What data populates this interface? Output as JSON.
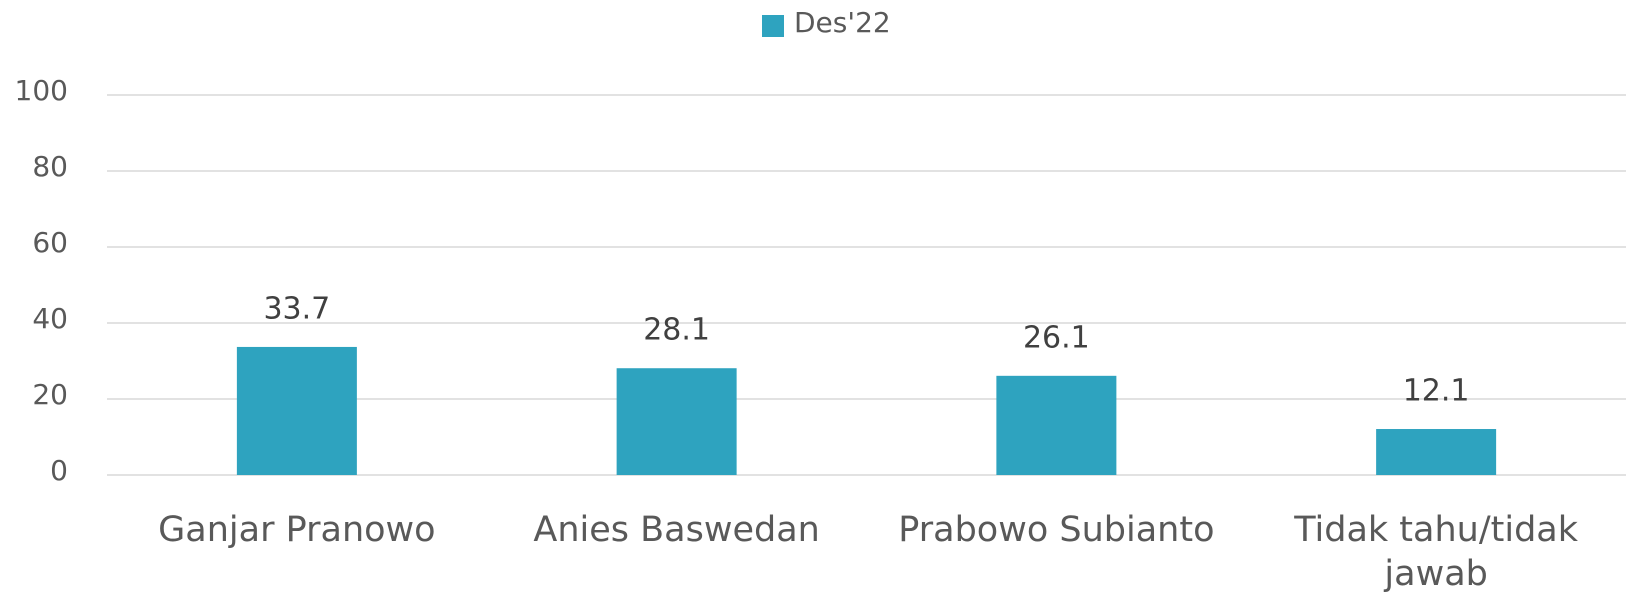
{
  "chart_data": {
    "type": "bar",
    "categories": [
      "Ganjar Pranowo",
      "Anies Baswedan",
      "Prabowo Subianto",
      "Tidak tahu/tidak jawab"
    ],
    "series": [
      {
        "name": "Des'22",
        "color": "#2ea3bf",
        "values": [
          33.7,
          28.1,
          26.1,
          12.1
        ]
      }
    ],
    "ylim": [
      0,
      100
    ],
    "yticks": [
      0,
      20,
      40,
      60,
      80,
      100
    ],
    "grid": true,
    "legend": "top"
  }
}
